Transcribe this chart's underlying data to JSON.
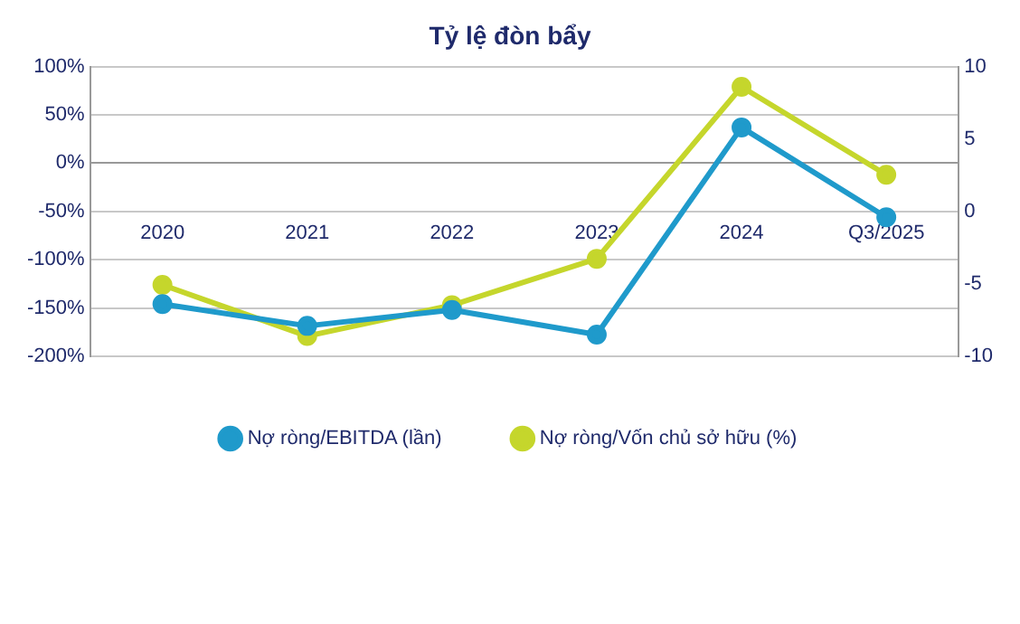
{
  "chart_data": {
    "type": "line",
    "title": "Tỷ lệ đòn bẩy",
    "categories": [
      "2020",
      "2021",
      "2022",
      "2023",
      "2024",
      "Q3/2025"
    ],
    "series": [
      {
        "name": "Nợ ròng/Vốn chủ sở hữu (%)",
        "color": "#c5d62c",
        "values": [
          -126,
          -179,
          -147,
          -99,
          79,
          -12
        ]
      },
      {
        "name": "Nợ ròng/EBITDA (lần)",
        "color": "#1f9acb",
        "axis": "y2",
        "values": [
          -6.4,
          -7.9,
          -6.8,
          -8.5,
          5.8,
          -0.4
        ]
      }
    ],
    "ylim": [
      -200,
      100
    ],
    "yticks": [
      {
        "value": -200,
        "label": "-200%"
      },
      {
        "value": -150,
        "label": "-150%"
      },
      {
        "value": -100,
        "label": "-100%"
      },
      {
        "value": -50,
        "label": "-50%"
      },
      {
        "value": 0,
        "label": "0%"
      },
      {
        "value": 50,
        "label": "50%"
      },
      {
        "value": 100,
        "label": "100%"
      }
    ],
    "y2lim": [
      -10,
      10
    ],
    "y2ticks": [
      -10,
      -5,
      0,
      5,
      10
    ],
    "grid": "y",
    "legend": "bottom",
    "marker": "circle",
    "line_style": "solid"
  }
}
